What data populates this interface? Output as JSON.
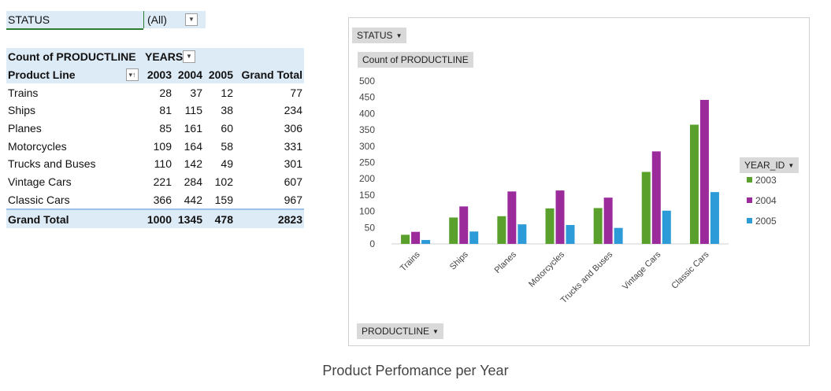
{
  "filter": {
    "label": "STATUS",
    "value": "(All)"
  },
  "pivot": {
    "value_header": "Count of PRODUCTLINE",
    "column_header": "YEARS",
    "row_header": "Product Line",
    "years": [
      "2003",
      "2004",
      "2005"
    ],
    "grand_total_label": "Grand Total",
    "rows": [
      {
        "label": "Trains",
        "values": [
          "28",
          "37",
          "12"
        ],
        "total": "77"
      },
      {
        "label": "Ships",
        "values": [
          "81",
          "115",
          "38"
        ],
        "total": "234"
      },
      {
        "label": "Planes",
        "values": [
          "85",
          "161",
          "60"
        ],
        "total": "306"
      },
      {
        "label": "Motorcycles",
        "values": [
          "109",
          "164",
          "58"
        ],
        "total": "331"
      },
      {
        "label": "Trucks and Buses",
        "values": [
          "110",
          "142",
          "49"
        ],
        "total": "301"
      },
      {
        "label": "Vintage Cars",
        "values": [
          "221",
          "284",
          "102"
        ],
        "total": "607"
      },
      {
        "label": "Classic Cars",
        "values": [
          "366",
          "442",
          "159"
        ],
        "total": "967"
      }
    ],
    "grand_totals": {
      "values": [
        "1000",
        "1345",
        "478"
      ],
      "total": "2823"
    }
  },
  "chart_buttons": {
    "filter": "STATUS",
    "value": "Count of PRODUCTLINE",
    "legend": "YEAR_ID",
    "axis": "PRODUCTLINE"
  },
  "caption": "Product Perfomance per Year",
  "chart_data": {
    "type": "bar",
    "categories": [
      "Trains",
      "Ships",
      "Planes",
      "Motorcycles",
      "Trucks and Buses",
      "Vintage Cars",
      "Classic Cars"
    ],
    "series": [
      {
        "name": "2003",
        "color": "#5aa02c",
        "values": [
          28,
          81,
          85,
          109,
          110,
          221,
          366
        ]
      },
      {
        "name": "2004",
        "color": "#9b2a9b",
        "values": [
          37,
          115,
          161,
          164,
          142,
          284,
          442
        ]
      },
      {
        "name": "2005",
        "color": "#2d9bd8",
        "values": [
          12,
          38,
          60,
          58,
          49,
          102,
          159
        ]
      }
    ],
    "ylim": [
      0,
      500
    ],
    "yticks": [
      0,
      50,
      100,
      150,
      200,
      250,
      300,
      350,
      400,
      450,
      500
    ],
    "grid": false,
    "legend_position": "right"
  }
}
